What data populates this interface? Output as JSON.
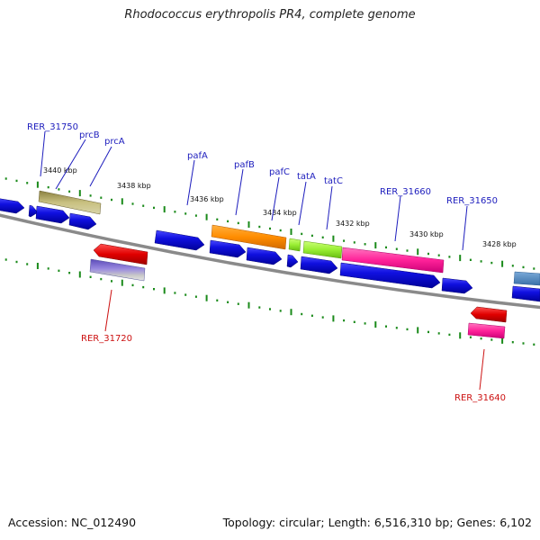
{
  "title": "Rhodococcus erythropolis PR4, complete genome",
  "footer": {
    "accession": "Accession: NC_012490",
    "summary": "Topology: circular; Length: 6,516,310 bp; Genes: 6,102"
  },
  "scale_labels": [
    "3440 kbp",
    "3438 kbp",
    "3436 kbp",
    "3434 kbp",
    "3432 kbp",
    "3430 kbp",
    "3428 kbp"
  ],
  "gene_labels_top": [
    "RER_31750",
    "prcB",
    "prcA",
    "pafA",
    "pafB",
    "pafC",
    "tatA",
    "tatC",
    "RER_31660",
    "RER_31650"
  ],
  "gene_labels_bottom": [
    "RER_31720",
    "RER_31640"
  ],
  "colors": {
    "cds": "#1010e0",
    "prcB": "#b8b070",
    "pafA": "#ff8c00",
    "pafC": "#99ee33",
    "ncRNA": "#ff2299",
    "rer31720_red": "#e00000",
    "rer31720_band": "#7a6ad0",
    "rer31640": "#ff3399",
    "right_edge": "#4a86c0",
    "backbone": "#8a8a8a",
    "tick": "#1a8a1a",
    "label_blue": "#1d1dbd",
    "label_red": "#cc1111"
  }
}
